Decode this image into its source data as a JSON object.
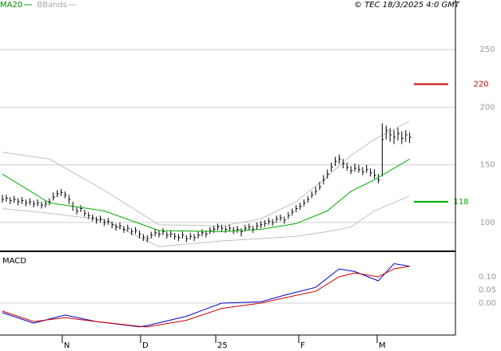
{
  "chart_data": [
    {
      "type": "ohlc",
      "source": "© TEC 18/3/2025 4:0 GMT",
      "xlim": [
        -0.6,
        115.7
      ],
      "ylim": [
        75,
        293
      ],
      "yticks": [
        100,
        150,
        200,
        250
      ],
      "grid": true,
      "bar_color": "#000000",
      "high": [
        124,
        124,
        122,
        123,
        121,
        122,
        120,
        121,
        119,
        120,
        118,
        119,
        121,
        126,
        128,
        129,
        127,
        124,
        118,
        113,
        115,
        111,
        109,
        107,
        105,
        106,
        103,
        104,
        101,
        99,
        100,
        97,
        98,
        95,
        96,
        93,
        90,
        89,
        92,
        94,
        93,
        95,
        92,
        93,
        91,
        90,
        92,
        89,
        91,
        90,
        92,
        94,
        93,
        96,
        97,
        99,
        98,
        97,
        98,
        96,
        97,
        95,
        98,
        99,
        97,
        100,
        101,
        102,
        104,
        103,
        106,
        107,
        105,
        109,
        112,
        115,
        117,
        120,
        123,
        127,
        131,
        135,
        141,
        146,
        152,
        157,
        159,
        155,
        152,
        149,
        151,
        150,
        148,
        150,
        147,
        146,
        142,
        186,
        184,
        182,
        180,
        182,
        179,
        180,
        178
      ],
      "low": [
        117,
        118,
        116,
        117,
        115,
        116,
        114,
        115,
        113,
        114,
        112,
        113,
        115,
        119,
        122,
        123,
        121,
        116,
        110,
        107,
        109,
        105,
        103,
        101,
        99,
        100,
        97,
        98,
        95,
        93,
        94,
        91,
        92,
        89,
        90,
        86,
        84,
        83,
        86,
        88,
        87,
        89,
        86,
        87,
        85,
        84,
        86,
        83,
        85,
        84,
        86,
        88,
        87,
        90,
        91,
        93,
        92,
        91,
        92,
        90,
        91,
        88,
        92,
        93,
        91,
        94,
        95,
        96,
        98,
        97,
        100,
        101,
        99,
        103,
        106,
        109,
        111,
        114,
        117,
        121,
        124,
        128,
        133,
        138,
        144,
        149,
        151,
        147,
        145,
        142,
        144,
        143,
        141,
        143,
        140,
        138,
        134,
        140,
        172,
        170,
        168,
        171,
        168,
        170,
        169
      ],
      "close": [
        120,
        121,
        119,
        120,
        118,
        119,
        117,
        118,
        116,
        117,
        115,
        116,
        118,
        122,
        125,
        126,
        124,
        120,
        114,
        110,
        112,
        108,
        106,
        104,
        102,
        103,
        100,
        101,
        98,
        96,
        97,
        94,
        95,
        92,
        93,
        90,
        87,
        86,
        89,
        91,
        90,
        92,
        89,
        90,
        88,
        87,
        89,
        86,
        88,
        87,
        89,
        91,
        90,
        93,
        94,
        96,
        95,
        94,
        95,
        93,
        94,
        92,
        95,
        96,
        94,
        97,
        98,
        99,
        101,
        100,
        103,
        104,
        102,
        106,
        109,
        112,
        114,
        117,
        120,
        124,
        127,
        131,
        137,
        142,
        148,
        153,
        155,
        151,
        148,
        145,
        147,
        146,
        144,
        146,
        143,
        141,
        137,
        172,
        180,
        176,
        174,
        177,
        173,
        176,
        174
      ],
      "series": [
        {
          "name": "MA20",
          "color": "#00aa00",
          "x": [
            0,
            12,
            26,
            40,
            56,
            66,
            75,
            83,
            89,
            95,
            104
          ],
          "values": [
            142,
            117,
            110,
            93,
            92,
            94,
            99,
            110,
            127,
            137,
            155
          ]
        },
        {
          "name": "BBands",
          "color": "#c0c0c0",
          "x": [
            0,
            12,
            26,
            40,
            56,
            66,
            75,
            83,
            89,
            95,
            104
          ],
          "upper": [
            161,
            155,
            128,
            98,
            97,
            103,
            118,
            140,
            158,
            172,
            188
          ],
          "lower": [
            112,
            108,
            102,
            79,
            84,
            86,
            88,
            92,
            96,
            110,
            123
          ]
        }
      ],
      "levels": [
        {
          "value": 220,
          "color": "#cc0000"
        },
        {
          "value": 118,
          "color": "#00aa00"
        }
      ]
    },
    {
      "type": "line",
      "title": "MACD",
      "xlim": [
        -0.6,
        115.7
      ],
      "ylim": [
        -0.115,
        0.194
      ],
      "yticks": [
        {
          "value": 0.1,
          "label": "0.10"
        },
        {
          "value": 0.05,
          "label": "0.05"
        },
        {
          "value": 0.0,
          "label": "0.00"
        }
      ],
      "xticks": [
        {
          "value": 15.3,
          "label": "N"
        },
        {
          "value": 35.3,
          "label": "D"
        },
        {
          "value": 54.5,
          "label": "25"
        },
        {
          "value": 75.7,
          "label": "F"
        },
        {
          "value": 95.7,
          "label": "M"
        }
      ],
      "x": [
        0,
        8,
        16,
        24,
        35,
        37,
        47,
        56,
        66,
        72,
        80,
        86,
        90,
        96,
        100,
        104
      ],
      "series": [
        {
          "color": "#0000cc",
          "values": [
            -0.036,
            -0.076,
            -0.045,
            -0.07,
            -0.09,
            -0.085,
            -0.05,
            0.0,
            0.005,
            0.03,
            0.06,
            0.13,
            0.12,
            0.085,
            0.15,
            0.14
          ]
        },
        {
          "color": "#cc0000",
          "values": [
            -0.03,
            -0.07,
            -0.055,
            -0.07,
            -0.088,
            -0.09,
            -0.065,
            -0.02,
            0.0,
            0.02,
            0.045,
            0.1,
            0.115,
            0.1,
            0.13,
            0.14
          ]
        }
      ]
    }
  ]
}
